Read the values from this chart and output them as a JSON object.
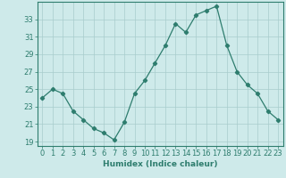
{
  "x": [
    0,
    1,
    2,
    3,
    4,
    5,
    6,
    7,
    8,
    9,
    10,
    11,
    12,
    13,
    14,
    15,
    16,
    17,
    18,
    19,
    20,
    21,
    22,
    23
  ],
  "y": [
    24.0,
    25.0,
    24.5,
    22.5,
    21.5,
    20.5,
    20.0,
    19.2,
    21.2,
    24.5,
    26.0,
    28.0,
    30.0,
    32.5,
    31.5,
    33.5,
    34.0,
    34.5,
    30.0,
    27.0,
    25.5,
    24.5,
    22.5,
    21.5
  ],
  "line_color": "#2e7d6e",
  "marker": "D",
  "marker_size": 2.2,
  "bg_color": "#ceeaea",
  "grid_color": "#a8cccc",
  "xlabel": "Humidex (Indice chaleur)",
  "ylim": [
    18.5,
    35.0
  ],
  "yticks": [
    19,
    21,
    23,
    25,
    27,
    29,
    31,
    33
  ],
  "xticks": [
    0,
    1,
    2,
    3,
    4,
    5,
    6,
    7,
    8,
    9,
    10,
    11,
    12,
    13,
    14,
    15,
    16,
    17,
    18,
    19,
    20,
    21,
    22,
    23
  ],
  "tick_color": "#2e7d6e",
  "axis_color": "#2e7d6e",
  "xlabel_fontsize": 6.5,
  "tick_fontsize": 6.0
}
